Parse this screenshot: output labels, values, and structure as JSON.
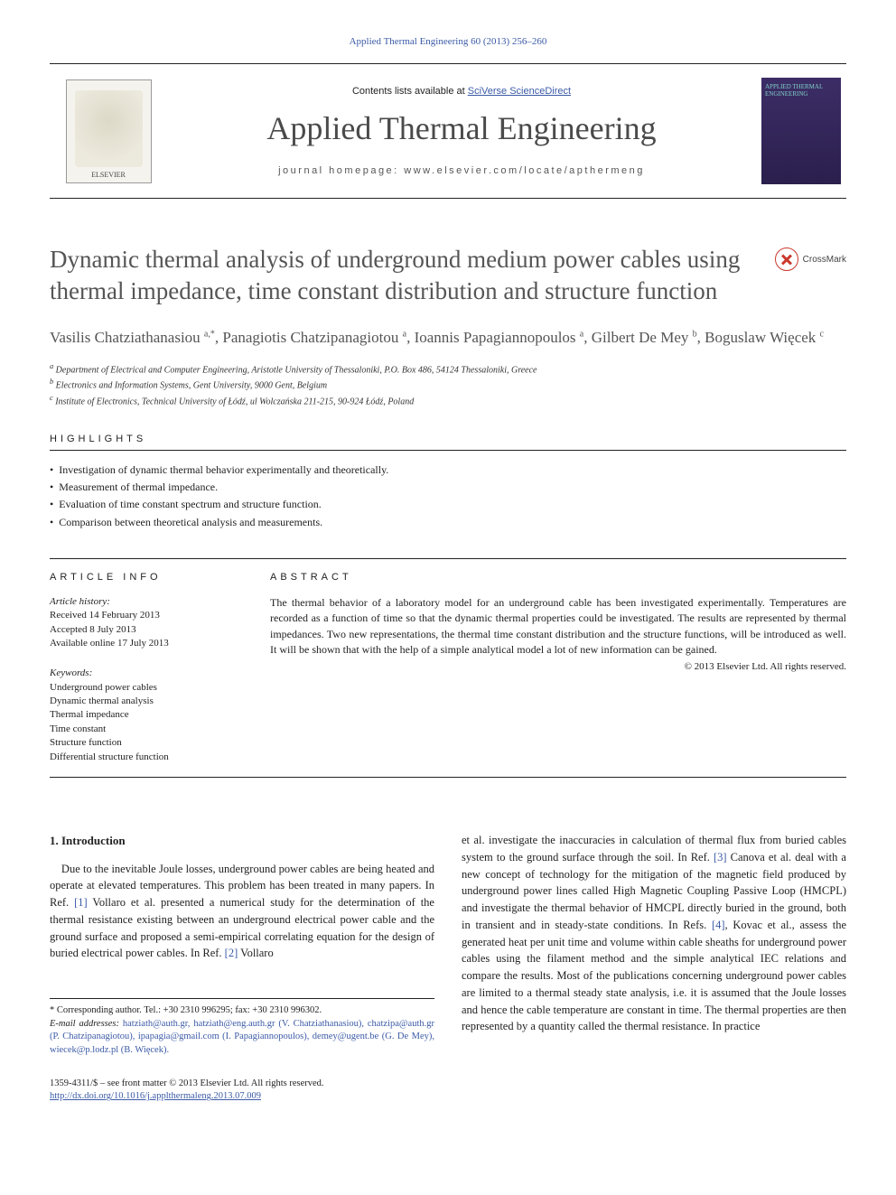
{
  "top_citation": "Applied Thermal Engineering 60 (2013) 256–260",
  "banner": {
    "contents_prefix": "Contents lists available at ",
    "contents_link": "SciVerse ScienceDirect",
    "journal": "Applied Thermal Engineering",
    "homepage_prefix": "journal homepage: ",
    "homepage": "www.elsevier.com/locate/apthermeng",
    "elsevier_label": "ELSEVIER",
    "cover_title": "APPLIED THERMAL ENGINEERING"
  },
  "crossmark": "CrossMark",
  "title": "Dynamic thermal analysis of underground medium power cables using thermal impedance, time constant distribution and structure function",
  "authors_html": "Vasilis Chatziathanasiou <sup>a,*</sup>, Panagiotis Chatzipanagiotou <sup>a</sup>, Ioannis Papagiannopoulos <sup>a</sup>, Gilbert De Mey <sup>b</sup>, Boguslaw Więcek <sup>c</sup>",
  "affiliations": [
    "a Department of Electrical and Computer Engineering, Aristotle University of Thessaloniki, P.O. Box 486, 54124 Thessaloniki, Greece",
    "b Electronics and Information Systems, Gent University, 9000 Gent, Belgium",
    "c Institute of Electronics, Technical University of Łódź, ul Wolczańska 211-215, 90-924 Łódź, Poland"
  ],
  "highlights_label": "HIGHLIGHTS",
  "highlights": [
    "Investigation of dynamic thermal behavior experimentally and theoretically.",
    "Measurement of thermal impedance.",
    "Evaluation of time constant spectrum and structure function.",
    "Comparison between theoretical analysis and measurements."
  ],
  "article_info_label": "ARTICLE INFO",
  "abstract_label": "ABSTRACT",
  "history_label": "Article history:",
  "history": {
    "received": "Received 14 February 2013",
    "accepted": "Accepted 8 July 2013",
    "online": "Available online 17 July 2013"
  },
  "keywords_label": "Keywords:",
  "keywords": [
    "Underground power cables",
    "Dynamic thermal analysis",
    "Thermal impedance",
    "Time constant",
    "Structure function",
    "Differential structure function"
  ],
  "abstract": "The thermal behavior of a laboratory model for an underground cable has been investigated experimentally. Temperatures are recorded as a function of time so that the dynamic thermal properties could be investigated. The results are represented by thermal impedances. Two new representations, the thermal time constant distribution and the structure functions, will be introduced as well. It will be shown that with the help of a simple analytical model a lot of new information can be gained.",
  "copyright": "© 2013 Elsevier Ltd. All rights reserved.",
  "sec1_heading": "1. Introduction",
  "body_left": "Due to the inevitable Joule losses, underground power cables are being heated and operate at elevated temperatures. This problem has been treated in many papers. In Ref. [1] Vollaro et al. presented a numerical study for the determination of the thermal resistance existing between an underground electrical power cable and the ground surface and proposed a semi-empirical correlating equation for the design of buried electrical power cables. In Ref. [2] Vollaro",
  "body_right": "et al. investigate the inaccuracies in calculation of thermal flux from buried cables system to the ground surface through the soil. In Ref. [3] Canova et al. deal with a new concept of technology for the mitigation of the magnetic field produced by underground power lines called High Magnetic Coupling Passive Loop (HMCPL) and investigate the thermal behavior of HMCPL directly buried in the ground, both in transient and in steady-state conditions. In Refs. [4], Kovac et al., assess the generated heat per unit time and volume within cable sheaths for underground power cables using the filament method and the simple analytical IEC relations and compare the results. Most of the publications concerning underground power cables are limited to a thermal steady state analysis, i.e. it is assumed that the Joule losses and hence the cable temperature are constant in time. The thermal properties are then represented by a quantity called the thermal resistance. In practice",
  "footnote": {
    "corr": "* Corresponding author. Tel.: +30 2310 996295; fax: +30 2310 996302.",
    "emails_label": "E-mail addresses: ",
    "emails": "hatziath@auth.gr, hatziath@eng.auth.gr (V. Chatziathanasiou), chatzipa@auth.gr (P. Chatzipanagiotou), ipapagia@gmail.com (I. Papagiannopoulos), demey@ugent.be (G. De Mey), wiecek@p.lodz.pl (B. Więcek)."
  },
  "bottom": {
    "issn": "1359-4311/$ – see front matter © 2013 Elsevier Ltd. All rights reserved.",
    "doi": "http://dx.doi.org/10.1016/j.applthermaleng.2013.07.009"
  },
  "colors": {
    "link": "#3b5aa6",
    "heading_gray": "#555555",
    "cover_bg": "#2f2356",
    "cover_text": "#7fd0c7"
  }
}
